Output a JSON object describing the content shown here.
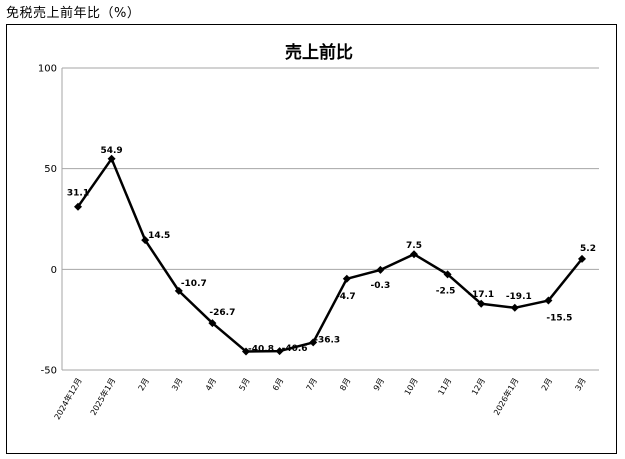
{
  "page": {
    "title": "免税売上前年比（%）"
  },
  "colors": {
    "line": "#000000",
    "grid": "#a6a6a6",
    "background": "#ffffff"
  },
  "chart_data": {
    "type": "line",
    "title": "売上前比",
    "xlabel": "",
    "ylabel": "",
    "ylim": [
      -50,
      100
    ],
    "yticks": [
      100,
      50,
      0,
      -50
    ],
    "grid": true,
    "legend": "none",
    "categories": [
      "2024年12月",
      "2025年1月",
      "2月",
      "3月",
      "4月",
      "5月",
      "6月",
      "7月",
      "8月",
      "9月",
      "10月",
      "11月",
      "12月",
      "2026年1月",
      "2月",
      "3月"
    ],
    "series": [
      {
        "values": [
          31.1,
          54.9,
          14.5,
          -10.7,
          -26.7,
          -40.8,
          -40.6,
          -36.3,
          -4.7,
          -0.3,
          7.5,
          -2.5,
          -17.1,
          -19.1,
          -15.5,
          5.2
        ]
      }
    ]
  }
}
